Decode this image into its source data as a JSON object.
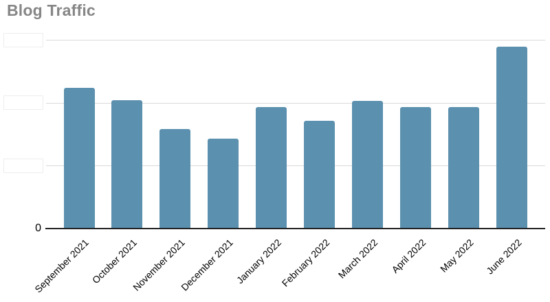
{
  "title": "Blog Traffic",
  "y_axis": {
    "zero_label": "0",
    "redacted_tick_count": 3,
    "ticks_redacted": true
  },
  "colors": {
    "background": "#ffffff",
    "bar": "#5b90ae",
    "gridline": "#d9d9d9",
    "axis_line": "#212121",
    "title_text": "#868686",
    "tick_text": "#000000",
    "redaction_box_border": "#ededed"
  },
  "chart_data": {
    "type": "bar",
    "title": "Blog Traffic",
    "categories": [
      "September 2021",
      "October 2021",
      "November 2021",
      "December 2021",
      "January 2022",
      "February 2022",
      "March 2022",
      "April 2022",
      "May 2022",
      "June 2022"
    ],
    "values": [
      2.24,
      2.04,
      1.58,
      1.43,
      1.93,
      1.71,
      2.03,
      1.93,
      1.93,
      2.89
    ],
    "values_unit": "gridline units (numeric y labels above 0 are covered by white boxes in the screenshot)",
    "xlabel": "",
    "ylabel": "",
    "ylim": [
      0,
      3.16
    ],
    "gridline_values": [
      1,
      2,
      3
    ],
    "y_tick_labels": [
      "0",
      "",
      "",
      ""
    ],
    "x_tick_rotation_deg": 45,
    "grid": true,
    "legend": "none",
    "bar_color": "#5b90ae"
  }
}
